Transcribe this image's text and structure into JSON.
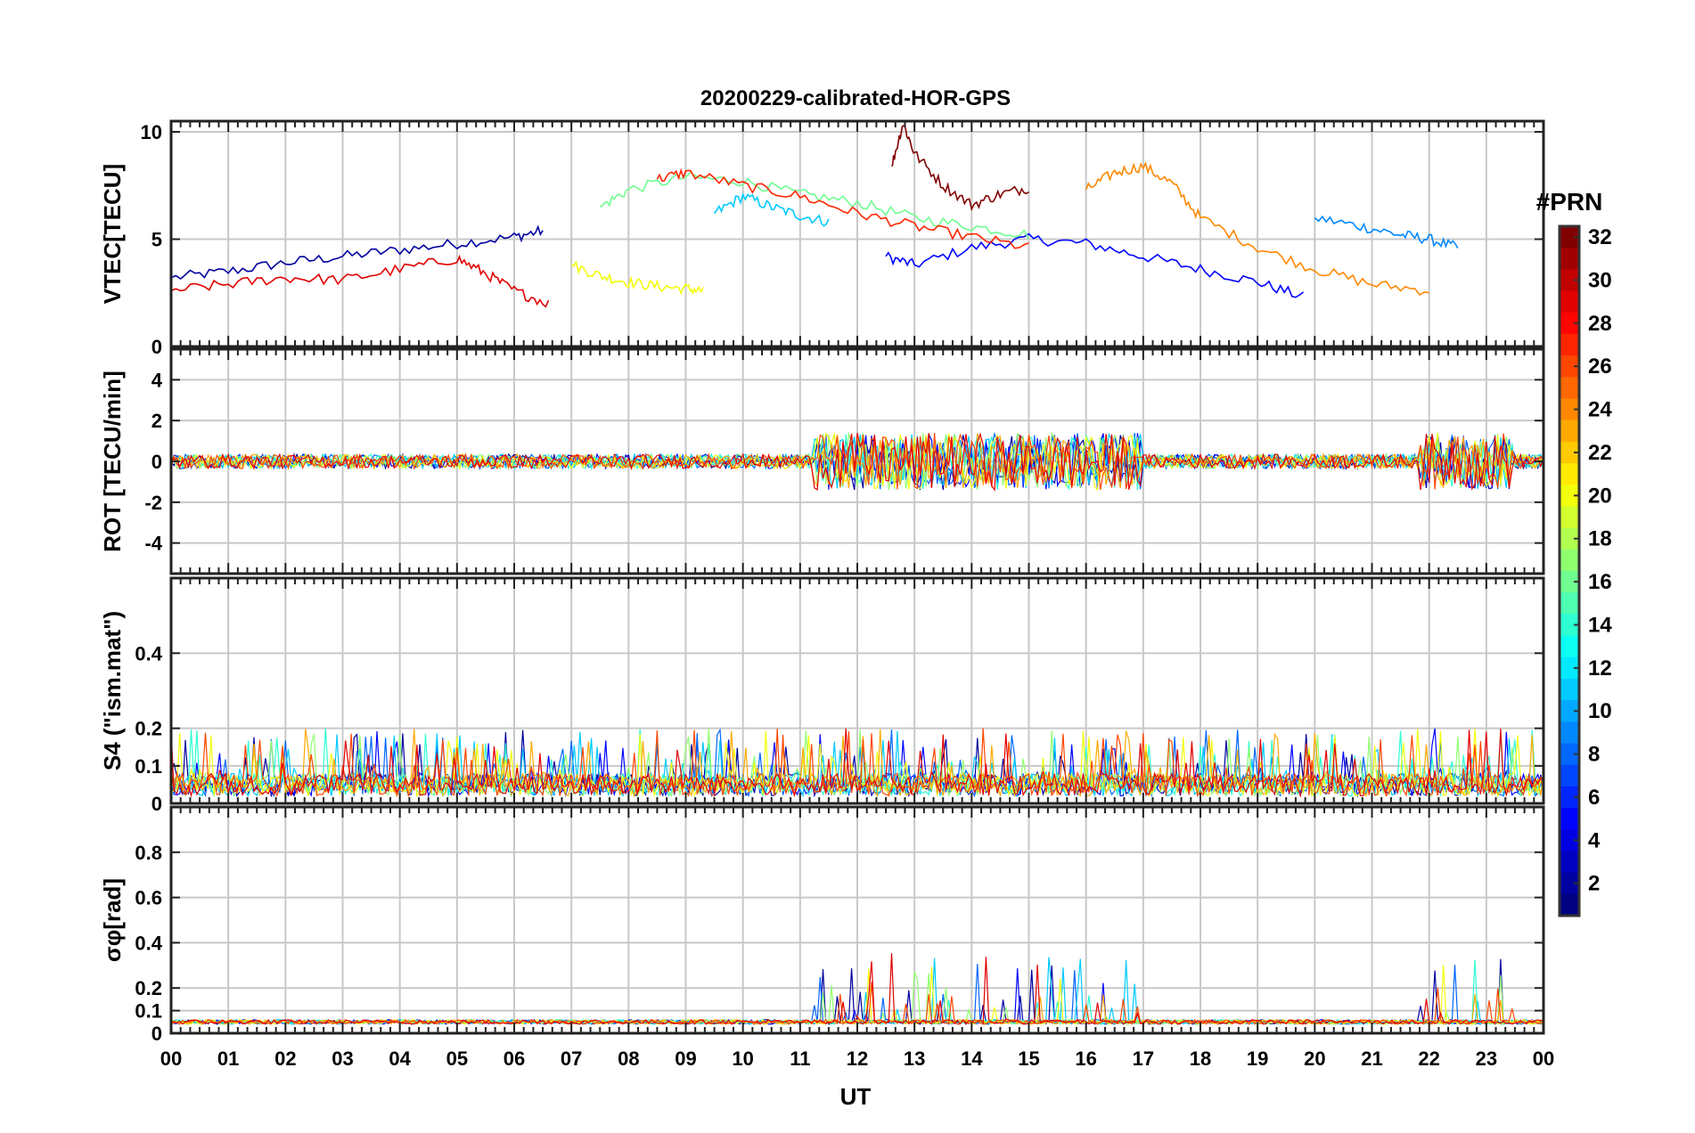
{
  "chart_data": {
    "type": "line",
    "title": "20200229-calibrated-HOR-GPS",
    "xlabel": "UT",
    "x_range": [
      0,
      24
    ],
    "x_tick_labels": [
      "00",
      "01",
      "02",
      "03",
      "04",
      "05",
      "06",
      "07",
      "08",
      "09",
      "10",
      "11",
      "12",
      "13",
      "14",
      "15",
      "16",
      "17",
      "18",
      "19",
      "20",
      "21",
      "22",
      "23",
      "00"
    ],
    "colorbar": {
      "title": "#PRN",
      "range": [
        1,
        32
      ],
      "tick_labels": [
        "2",
        "4",
        "6",
        "8",
        "10",
        "12",
        "14",
        "16",
        "18",
        "20",
        "22",
        "24",
        "26",
        "28",
        "30",
        "32"
      ]
    },
    "panels": [
      {
        "id": "vtec",
        "ylabel": "VTEC[TECU]",
        "ylim": [
          0,
          10.5
        ],
        "yticks": [
          0,
          5,
          10
        ],
        "ytick_labels": [
          "0",
          "5",
          "10"
        ],
        "grid": true
      },
      {
        "id": "rot",
        "ylabel": "ROT [TECU/min]",
        "ylim": [
          -5.5,
          5.5
        ],
        "yticks": [
          -4,
          -2,
          0,
          2,
          4
        ],
        "ytick_labels": [
          "-4",
          "-2",
          "0",
          "2",
          "4"
        ],
        "grid": true
      },
      {
        "id": "s4",
        "ylabel": "S4 (\"ism.mat\")",
        "ylim": [
          0,
          0.6
        ],
        "yticks": [
          0,
          0.1,
          0.2,
          0.4
        ],
        "ytick_labels": [
          "0",
          "0.1",
          "0.2",
          "0.4"
        ],
        "grid": true
      },
      {
        "id": "sigma",
        "ylabel": "σφ[rad]",
        "ylim": [
          0,
          1.0
        ],
        "yticks": [
          0,
          0.1,
          0.2,
          0.4,
          0.6,
          0.8
        ],
        "ytick_labels": [
          "0",
          "0.1",
          "0.2",
          "0.4",
          "0.6",
          "0.8"
        ],
        "grid": true
      }
    ],
    "series": [
      {
        "prn": 2,
        "vtec": [
          [
            0,
            3.2
          ],
          [
            1,
            3.5
          ],
          [
            2,
            3.9
          ],
          [
            3,
            4.2
          ],
          [
            4,
            4.5
          ],
          [
            5,
            4.8
          ],
          [
            6,
            5.1
          ],
          [
            6.5,
            5.4
          ]
        ]
      },
      {
        "prn": 5,
        "vtec": [
          [
            12.5,
            4.2
          ],
          [
            13,
            3.8
          ],
          [
            14,
            4.6
          ],
          [
            15,
            5.0
          ],
          [
            16,
            4.8
          ],
          [
            17,
            4.2
          ],
          [
            18,
            3.6
          ],
          [
            19,
            3.0
          ],
          [
            19.8,
            2.3
          ]
        ]
      },
      {
        "prn": 9,
        "vtec": [
          [
            20,
            6.0
          ],
          [
            20.8,
            5.6
          ],
          [
            21.5,
            5.2
          ],
          [
            22,
            5.0
          ],
          [
            22.5,
            4.6
          ]
        ]
      },
      {
        "prn": 11,
        "vtec": [
          [
            9.5,
            6.2
          ],
          [
            10,
            7.0
          ],
          [
            10.5,
            6.5
          ],
          [
            11,
            6.1
          ],
          [
            11.5,
            5.8
          ]
        ]
      },
      {
        "prn": 16,
        "vtec": [
          [
            7.5,
            6.5
          ],
          [
            8,
            7.3
          ],
          [
            9,
            7.9
          ],
          [
            10,
            7.7
          ],
          [
            11,
            7.1
          ],
          [
            12,
            6.7
          ],
          [
            13,
            6.0
          ],
          [
            14,
            5.6
          ],
          [
            15,
            5.2
          ]
        ]
      },
      {
        "prn": 20,
        "vtec": [
          [
            7,
            3.8
          ],
          [
            7.5,
            3.3
          ],
          [
            8,
            3.0
          ],
          [
            8.5,
            2.8
          ],
          [
            9,
            2.7
          ],
          [
            9.3,
            2.6
          ]
        ]
      },
      {
        "prn": 24,
        "vtec": [
          [
            16,
            7.3
          ],
          [
            16.5,
            8.1
          ],
          [
            17,
            8.4
          ],
          [
            17.5,
            7.6
          ],
          [
            18,
            6.0
          ],
          [
            19,
            4.6
          ],
          [
            20,
            3.6
          ],
          [
            21,
            2.9
          ],
          [
            22,
            2.6
          ]
        ]
      },
      {
        "prn": 27,
        "vtec": [
          [
            8.5,
            7.8
          ],
          [
            9,
            8.1
          ],
          [
            10,
            7.5
          ],
          [
            11,
            7.0
          ],
          [
            12,
            6.2
          ],
          [
            13,
            5.6
          ],
          [
            14,
            5.1
          ],
          [
            15,
            4.6
          ]
        ]
      },
      {
        "prn": 29,
        "vtec": [
          [
            0,
            2.6
          ],
          [
            1,
            2.9
          ],
          [
            2,
            3.2
          ],
          [
            3,
            3.1
          ],
          [
            4,
            3.6
          ],
          [
            5,
            4.1
          ],
          [
            5.5,
            3.4
          ],
          [
            6,
            2.6
          ],
          [
            6.6,
            2.0
          ]
        ]
      },
      {
        "prn": 32,
        "vtec": [
          [
            12.6,
            8.4
          ],
          [
            12.8,
            10.4
          ],
          [
            13,
            9.0
          ],
          [
            13.5,
            7.5
          ],
          [
            14,
            6.6
          ],
          [
            14.5,
            7.1
          ],
          [
            15,
            7.4
          ]
        ]
      }
    ]
  }
}
